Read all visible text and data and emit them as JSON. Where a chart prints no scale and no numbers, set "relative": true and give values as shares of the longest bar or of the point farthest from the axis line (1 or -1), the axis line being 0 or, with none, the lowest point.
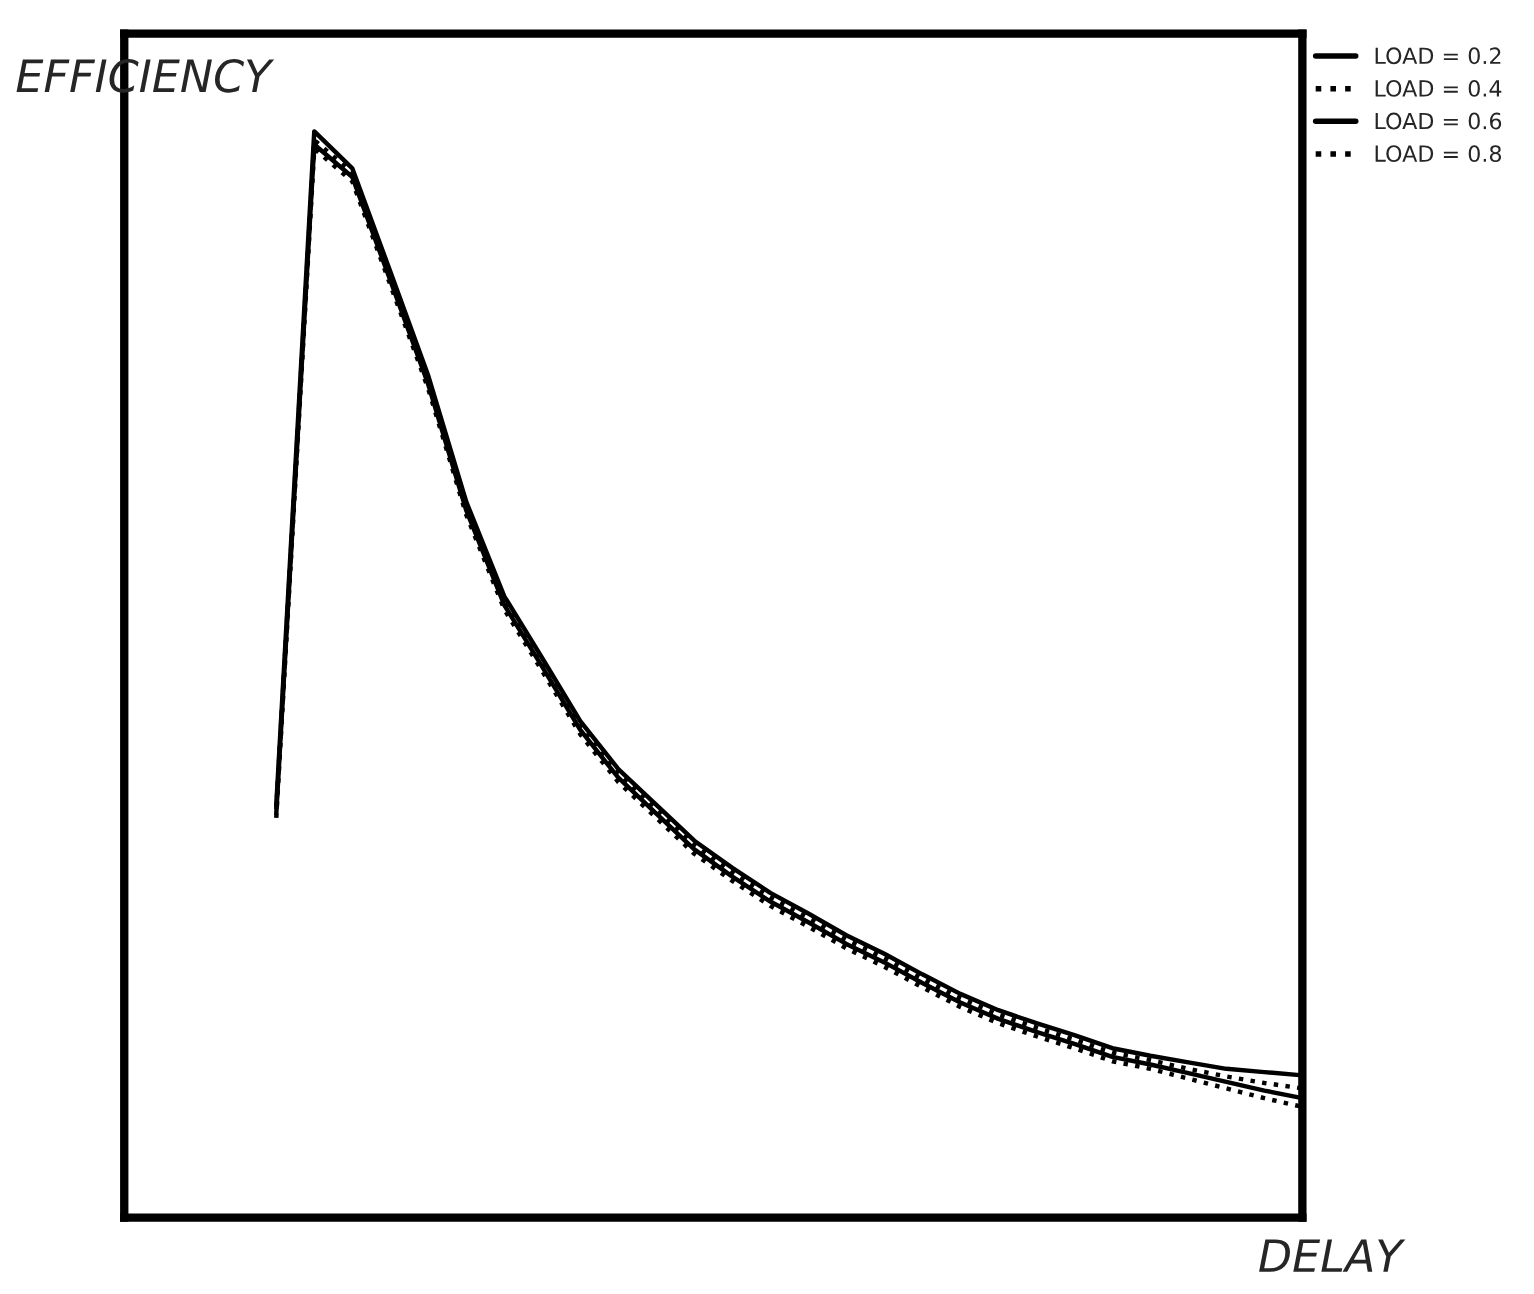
{
  "chart_data": {
    "type": "line",
    "relative": true,
    "xlabel": "DELAY",
    "ylabel": "EFFICIENCY",
    "legend": "top right",
    "categories": [
      null,
      null,
      null,
      null,
      null,
      null,
      null,
      null,
      null,
      null,
      null,
      null,
      null,
      null,
      null,
      null,
      null,
      null,
      null,
      null,
      null,
      null,
      null,
      null,
      null,
      null,
      null,
      null,
      null,
      null,
      null,
      null
    ],
    "series": [
      {
        "name": "LOAD = 0.2",
        "color": "#000000",
        "line_style": "solid",
        "values": [
          null,
          null,
          null,
          null,
          0.38,
          1.0,
          0.966,
          0.871,
          0.775,
          0.659,
          0.572,
          0.515,
          0.457,
          0.413,
          0.38,
          0.347,
          0.322,
          0.299,
          0.28,
          0.26,
          0.243,
          0.224,
          0.206,
          0.191,
          0.179,
          0.168,
          0.156,
          0.149,
          0.143,
          0.137,
          0.134,
          0.131
        ]
      },
      {
        "name": "LOAD = 0.4",
        "color": "#000000",
        "line_style": "dotted",
        "values": [
          null,
          null,
          null,
          null,
          0.376,
          0.992,
          0.962,
          0.867,
          0.771,
          0.655,
          0.568,
          0.511,
          0.453,
          0.409,
          0.376,
          0.343,
          0.318,
          0.295,
          0.276,
          0.256,
          0.239,
          0.22,
          0.202,
          0.187,
          0.175,
          0.164,
          0.152,
          0.145,
          0.137,
          0.13,
          0.124,
          0.119
        ]
      },
      {
        "name": "LOAD = 0.6",
        "color": "#000000",
        "line_style": "solid",
        "values": [
          null,
          null,
          null,
          null,
          0.372,
          0.988,
          0.958,
          0.863,
          0.767,
          0.651,
          0.564,
          0.507,
          0.449,
          0.405,
          0.372,
          0.339,
          0.314,
          0.291,
          0.272,
          0.252,
          0.235,
          0.216,
          0.198,
          0.183,
          0.171,
          0.16,
          0.148,
          0.141,
          0.133,
          0.125,
          0.117,
          0.11
        ]
      },
      {
        "name": "LOAD = 0.8",
        "color": "#000000",
        "line_style": "dotted",
        "values": [
          null,
          null,
          null,
          null,
          0.368,
          0.984,
          0.954,
          0.859,
          0.763,
          0.647,
          0.56,
          0.503,
          0.445,
          0.401,
          0.368,
          0.335,
          0.31,
          0.287,
          0.268,
          0.248,
          0.231,
          0.212,
          0.194,
          0.179,
          0.167,
          0.156,
          0.144,
          0.137,
          0.128,
          0.119,
          0.11,
          0.102
        ]
      }
    ]
  }
}
